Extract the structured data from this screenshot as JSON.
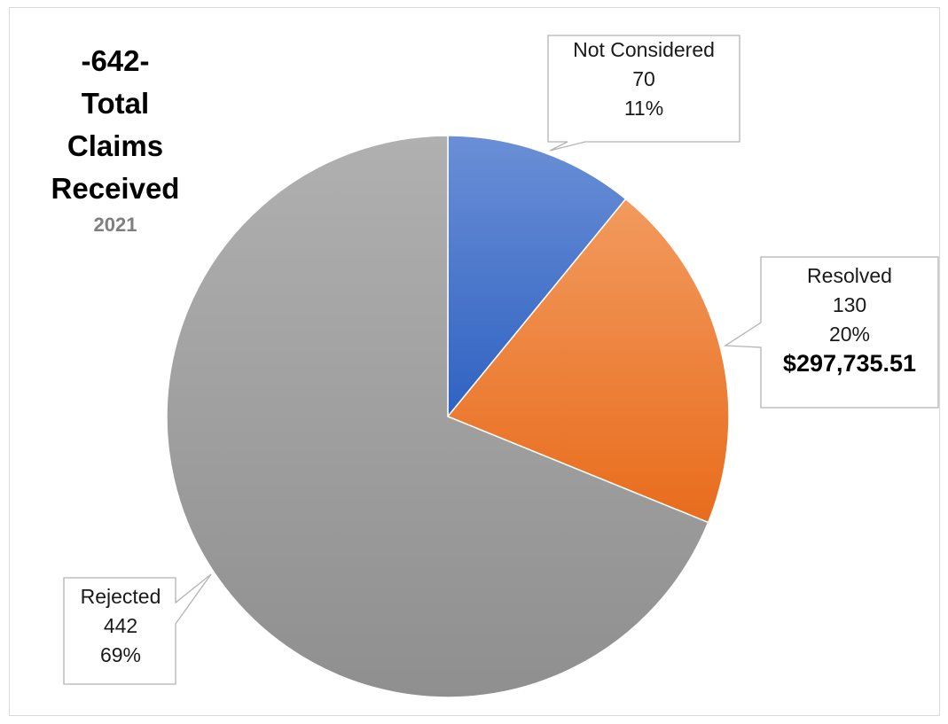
{
  "chart_data": {
    "type": "pie",
    "title": {
      "count": "-642-",
      "line1": "Total",
      "line2": "Claims",
      "line3": "Received",
      "year": "2021"
    },
    "slices": [
      {
        "label": "Not Considered",
        "value": 70,
        "percent": "11%",
        "value_text": "70",
        "color": "#4472c4"
      },
      {
        "label": "Resolved",
        "value": 130,
        "percent": "20%",
        "value_text": "130",
        "amount": "$297,735.51",
        "color": "#ed7d31"
      },
      {
        "label": "Rejected",
        "value": 442,
        "percent": "69%",
        "value_text": "442",
        "color": "#a5a5a5"
      }
    ]
  }
}
